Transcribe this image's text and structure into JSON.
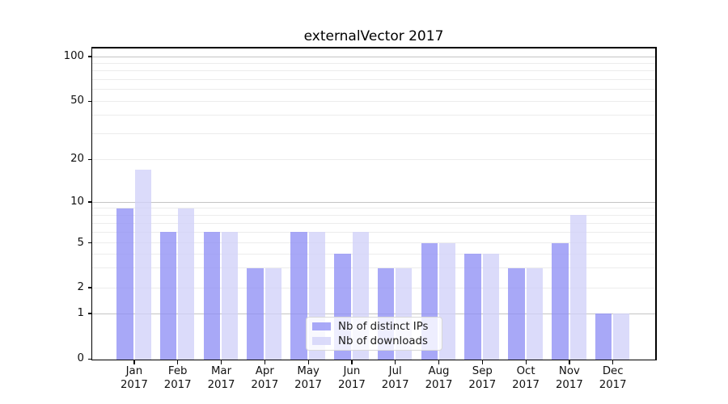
{
  "title": "externalVector 2017",
  "chart_data": {
    "type": "bar",
    "title": "externalVector 2017",
    "categories": [
      "Jan",
      "Feb",
      "Mar",
      "Apr",
      "May",
      "Jun",
      "Jul",
      "Aug",
      "Sep",
      "Oct",
      "Nov",
      "Dec"
    ],
    "x_tick_year_line": "2017",
    "series": [
      {
        "name": "Nb of distinct IPs",
        "color": "rgba(143,143,245,0.78)",
        "values": [
          9,
          6,
          6,
          3,
          6,
          4,
          3,
          5,
          4,
          3,
          5,
          1
        ]
      },
      {
        "name": "Nb of downloads",
        "color": "rgba(209,209,248,0.78)",
        "values": [
          17,
          9,
          6,
          3,
          6,
          6,
          3,
          5,
          4,
          3,
          8,
          1
        ]
      }
    ],
    "yaxis": {
      "scale": "symlog-like",
      "tick_values": [
        0,
        1,
        2,
        5,
        10,
        20,
        50,
        100
      ],
      "major_grid_values": [
        1,
        10,
        100
      ],
      "minor_grid_values": [
        2,
        3,
        4,
        5,
        6,
        7,
        8,
        9,
        20,
        30,
        40,
        50,
        60,
        70,
        80,
        90
      ],
      "range": [
        0,
        115
      ]
    },
    "grid": true,
    "legend_position": "lower center",
    "colors": {
      "bar_dark_hex": "#a9a9f8",
      "bar_light_hex": "#dbdbfa",
      "major_grid": "#c4c4c4",
      "minor_grid": "#ececec",
      "spine": "#000000",
      "background": "#ffffff"
    }
  }
}
